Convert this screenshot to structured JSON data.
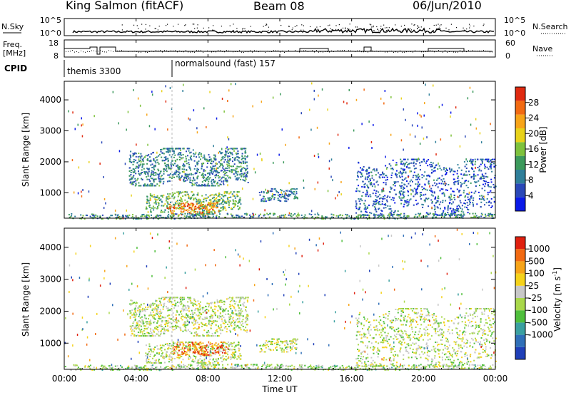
{
  "header": {
    "station": "King Salmon (fitACF)",
    "beam": "Beam 08",
    "date": "06/Jun/2010"
  },
  "status_panels": {
    "nsky_label": "N.Sky",
    "nsky_ticks": [
      "10^5",
      "10^0"
    ],
    "nsearch_label": "N.Search",
    "nsearch_ticks": [
      "10^5",
      "10^0"
    ],
    "freq_label_1": "Freq.",
    "freq_label_2": "[MHz]",
    "freq_ticks": [
      "18",
      "8"
    ],
    "nave_label": "Nave",
    "nave_ticks": [
      "60",
      "0"
    ],
    "cpid_label": "CPID",
    "cpid_segments": [
      {
        "label": "themis 3300",
        "start_hour": 0.0,
        "end_hour": 6.0
      },
      {
        "label": "normalsound (fast) 157",
        "start_hour": 6.0,
        "end_hour": 24.0
      }
    ]
  },
  "x_axis": {
    "label": "Time UT",
    "tick_labels": [
      "00:00",
      "04:00",
      "08:00",
      "12:00",
      "16:00",
      "20:00",
      "00:00"
    ],
    "range_hours": [
      0,
      24
    ]
  },
  "chart_data": [
    {
      "type": "heatmap",
      "ylabel": "Slant Range [km]",
      "xlabel": "",
      "yticks": [
        "1000",
        "2000",
        "3000",
        "4000"
      ],
      "ylim": [
        180,
        4600
      ],
      "colorbar": {
        "label": "Power [dB]",
        "range": [
          0,
          32
        ],
        "tick_labels": [
          "4",
          "8",
          "12",
          "16",
          "20",
          "24",
          "28"
        ],
        "colors": [
          "#0a1ae8",
          "#2a48b8",
          "#2f7f9a",
          "#3c9a5c",
          "#7ec23c",
          "#e8d21a",
          "#f7a418",
          "#f26a12",
          "#e02a10"
        ]
      },
      "echo_regions": [
        {
          "t0": 3.6,
          "t1": 10.2,
          "r0": 1250,
          "r1": 2450,
          "level": 0.3
        },
        {
          "t0": 4.5,
          "t1": 9.8,
          "r0": 400,
          "r1": 1050,
          "level": 0.45
        },
        {
          "t0": 5.7,
          "t1": 8.6,
          "r0": 300,
          "r1": 700,
          "level": 0.8
        },
        {
          "t0": 10.8,
          "t1": 13.0,
          "r0": 750,
          "r1": 1150,
          "level": 0.25
        },
        {
          "t0": 16.2,
          "t1": 24.0,
          "r0": 300,
          "r1": 2100,
          "level": 0.2
        },
        {
          "t0": 0.0,
          "t1": 24.0,
          "r0": 180,
          "r1": 350,
          "level": 0.35
        }
      ]
    },
    {
      "type": "heatmap",
      "ylabel": "Slant Range [km]",
      "xlabel": "Time UT",
      "yticks": [
        "1000",
        "2000",
        "3000",
        "4000"
      ],
      "ylim": [
        180,
        4600
      ],
      "colorbar": {
        "label": "Velocity [m s^-1]",
        "range": [
          -1000,
          1000
        ],
        "tick_labels": [
          "1000",
          "500",
          "100",
          "25",
          "-25",
          "-100",
          "-500",
          "-1000"
        ],
        "colors": [
          "#1f3fb8",
          "#2f6fb8",
          "#3aa0a0",
          "#4fbf3c",
          "#a9d84a",
          "#c8c8c8",
          "#f5d21a",
          "#f7a418",
          "#f26a12",
          "#e0200f"
        ]
      },
      "echo_regions": [
        {
          "t0": 3.6,
          "t1": 10.2,
          "r0": 1250,
          "r1": 2450,
          "level": 0.5
        },
        {
          "t0": 4.5,
          "t1": 9.8,
          "r0": 400,
          "r1": 1050,
          "level": 0.5
        },
        {
          "t0": 6.0,
          "t1": 9.0,
          "r0": 650,
          "r1": 1050,
          "level": 0.85
        },
        {
          "t0": 10.8,
          "t1": 13.0,
          "r0": 750,
          "r1": 1150,
          "level": 0.5
        },
        {
          "t0": 16.2,
          "t1": 24.0,
          "r0": 300,
          "r1": 2100,
          "level": 0.5
        },
        {
          "t0": 0.0,
          "t1": 24.0,
          "r0": 180,
          "r1": 350,
          "level": 0.45
        }
      ]
    }
  ]
}
